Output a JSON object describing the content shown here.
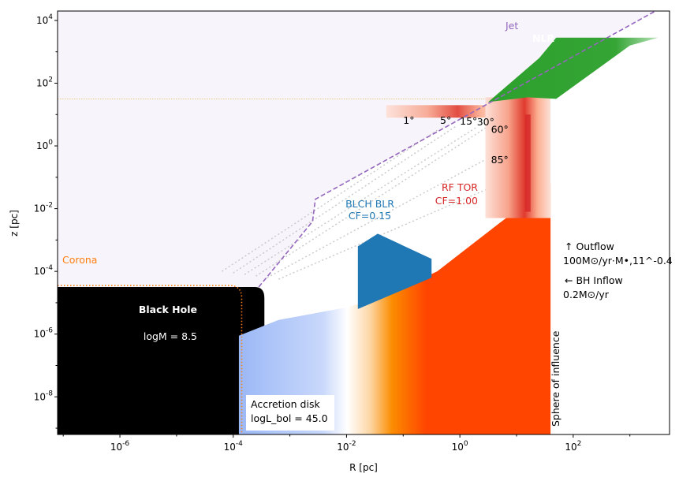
{
  "chart_data": {
    "type": "scatter",
    "xlabel": "R [pc]",
    "ylabel": "z [pc]",
    "xscale": "log",
    "yscale": "log",
    "xlim_exp": [
      -7.1,
      3.7
    ],
    "ylim_exp": [
      -9.2,
      4.3
    ],
    "x_ticks": [
      {
        "exp": -6,
        "label": "10^-6"
      },
      {
        "exp": -4,
        "label": "10^-4"
      },
      {
        "exp": -2,
        "label": "10^-2"
      },
      {
        "exp": 0,
        "label": "10^0"
      },
      {
        "exp": 2,
        "label": "10^2"
      }
    ],
    "y_ticks": [
      {
        "exp": -8,
        "label": "10^-8"
      },
      {
        "exp": -6,
        "label": "10^-6"
      },
      {
        "exp": -4,
        "label": "10^-4"
      },
      {
        "exp": -2,
        "label": "10^-2"
      },
      {
        "exp": 0,
        "label": "10^0"
      },
      {
        "exp": 2,
        "label": "10^2"
      },
      {
        "exp": 4,
        "label": "10^4"
      }
    ],
    "colors": {
      "black_hole": "#000000",
      "disk_blue": "#9bb8f6",
      "disk_orange": "#fb8c00",
      "disk_red": "#ff4500",
      "blr": "#1f77b4",
      "torus": "#d62728",
      "nlr": "#2ca02c",
      "jet": "#9467bd",
      "corona": "#ff7f0e",
      "wind_fill": "#f7f4fb",
      "sight_lines": "#c8c8c8",
      "dust_line": "#e0c060"
    },
    "annotations": {
      "jet": "Jet",
      "nlr": "NLR",
      "corona": "Corona",
      "bh_title": "Black Hole",
      "bh_mass": "logM = 8.5",
      "disk_title": "Accretion disk",
      "disk_lum": "logL_bol = 45.0",
      "blr_name": "BLCH BLR",
      "blr_cf": "CF=0.15",
      "tor_name": "RF TOR",
      "tor_cf": "CF=1.00",
      "outflow_label": "↑  Outflow",
      "outflow_value": "100M⊙/yr·M•,11^-0.4",
      "inflow_label": "←  BH Inflow",
      "inflow_value": "0.2M⊙/yr",
      "soi": "Sphere of influence"
    },
    "angles": [
      {
        "label": "1°",
        "deg": 1
      },
      {
        "label": "5°",
        "deg": 5
      },
      {
        "label": "15°",
        "deg": 15
      },
      {
        "label": "30°",
        "deg": 30
      },
      {
        "label": "60°",
        "deg": 60
      },
      {
        "label": "85°",
        "deg": 85
      }
    ],
    "black_hole_edge_exp": -3.45,
    "black_hole_top_exp": -4.5,
    "disk_inner_exp": -3.9,
    "sphere_of_influence_exp": 1.6,
    "torus_inner_exp": 0.45,
    "blr_x_exp": [
      -1.8,
      -0.5
    ],
    "nlr_x_exp": [
      0.5,
      3.5
    ]
  }
}
